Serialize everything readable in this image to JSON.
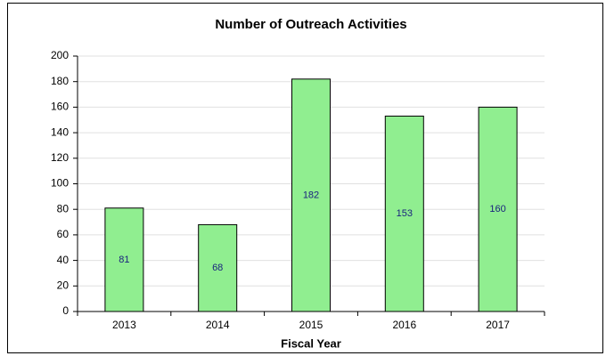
{
  "chart_data": {
    "type": "bar",
    "title": "Number of Outreach Activities",
    "x_label": "Fiscal Year",
    "categories": [
      "2013",
      "2014",
      "2015",
      "2016",
      "2017"
    ],
    "values": [
      81,
      68,
      182,
      153,
      160
    ],
    "color": "#90ee90",
    "ylim": [
      0,
      200
    ],
    "yticks": [
      0,
      20,
      40,
      60,
      80,
      100,
      120,
      140,
      160,
      180,
      200
    ],
    "grid": true
  }
}
